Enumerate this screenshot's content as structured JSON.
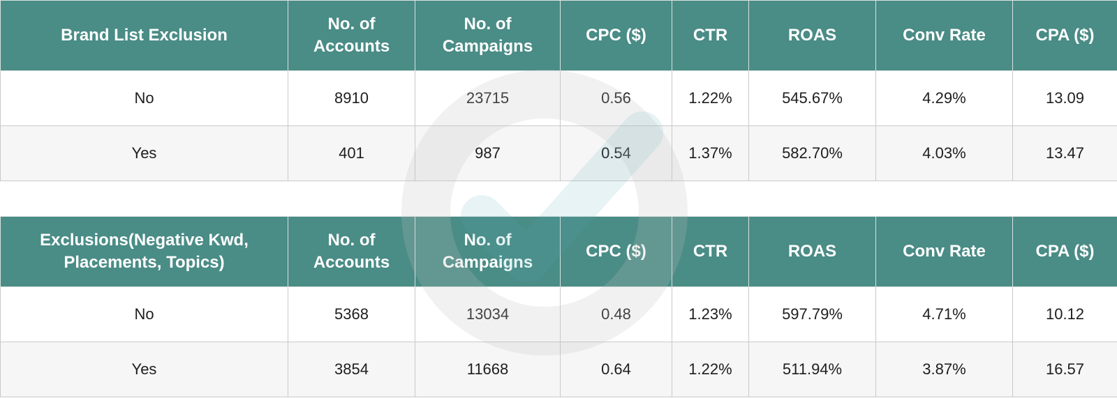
{
  "tables": [
    {
      "headers": [
        "Brand List Exclusion",
        "No. of Accounts",
        "No. of Campaigns",
        "CPC ($)",
        "CTR",
        "ROAS",
        "Conv Rate",
        "CPA ($)"
      ],
      "rows": [
        [
          "No",
          "8910",
          "23715",
          "0.56",
          "1.22%",
          "545.67%",
          "4.29%",
          "13.09"
        ],
        [
          "Yes",
          "401",
          "987",
          "0.54",
          "1.37%",
          "582.70%",
          "4.03%",
          "13.47"
        ]
      ]
    },
    {
      "headers": [
        "Exclusions(Negative Kwd, Placements, Topics)",
        "No. of Accounts",
        "No. of Campaigns",
        "CPC ($)",
        "CTR",
        "ROAS",
        "Conv Rate",
        "CPA ($)"
      ],
      "rows": [
        [
          "No",
          "5368",
          "13034",
          "0.48",
          "1.23%",
          "597.79%",
          "4.71%",
          "10.12"
        ],
        [
          "Yes",
          "3854",
          "11668",
          "0.64",
          "1.22%",
          "511.94%",
          "3.87%",
          "16.57"
        ]
      ]
    }
  ],
  "colors": {
    "header_bg": "#4a8c86",
    "header_text": "#ffffff",
    "alt_row_bg": "#f6f6f6"
  },
  "watermark_icon": "checkmark-circle-icon"
}
